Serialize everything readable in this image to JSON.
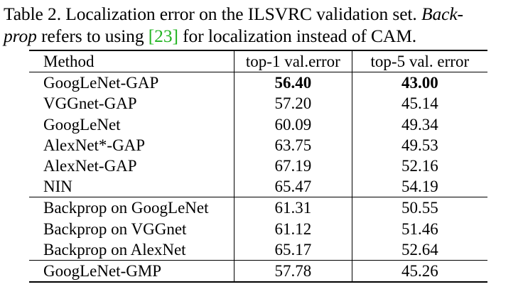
{
  "caption": {
    "label": "Table 2.",
    "text_1": "Localization error on the ILSVRC validation set.",
    "italic_1": "Back-",
    "italic_2": "prop",
    "text_2": "refers to using",
    "ref": "[23]",
    "text_3": "for localization instead of CAM."
  },
  "table": {
    "headers": [
      "Method",
      "top-1 val.error",
      "top-5 val. error"
    ],
    "groups": [
      [
        {
          "method": "GoogLeNet-GAP",
          "top1": "56.40",
          "top5": "43.00",
          "bold": true
        },
        {
          "method": "VGGnet-GAP",
          "top1": "57.20",
          "top5": "45.14"
        },
        {
          "method": "GoogLeNet",
          "top1": "60.09",
          "top5": "49.34"
        },
        {
          "method": "AlexNet*-GAP",
          "top1": "63.75",
          "top5": "49.53"
        },
        {
          "method": "AlexNet-GAP",
          "top1": "67.19",
          "top5": "52.16"
        },
        {
          "method": "NIN",
          "top1": "65.47",
          "top5": "54.19"
        }
      ],
      [
        {
          "method": "Backprop on GoogLeNet",
          "top1": "61.31",
          "top5": "50.55"
        },
        {
          "method": "Backprop on VGGnet",
          "top1": "61.12",
          "top5": "51.46"
        },
        {
          "method": "Backprop on AlexNet",
          "top1": "65.17",
          "top5": "52.64"
        }
      ],
      [
        {
          "method": "GoogLeNet-GMP",
          "top1": "57.78",
          "top5": "45.26"
        }
      ]
    ]
  }
}
